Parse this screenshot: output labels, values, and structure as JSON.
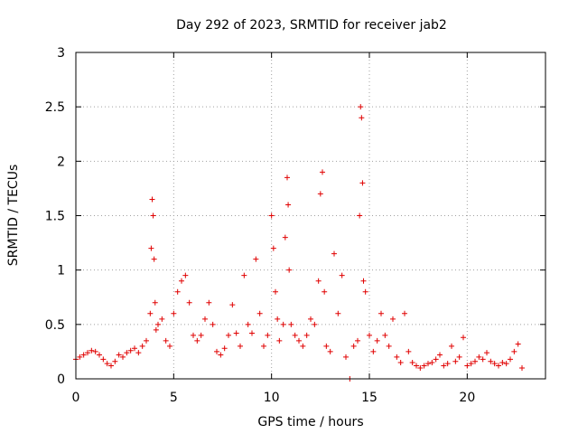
{
  "chart_data": {
    "type": "scatter",
    "title": "Day 292 of 2023, SRMTID for receiver jab2",
    "xlabel": "GPS time / hours",
    "ylabel": "SRMTID / TECUs",
    "xlim": [
      0,
      24
    ],
    "ylim": [
      0,
      3
    ],
    "xticks": [
      0,
      5,
      10,
      15,
      20
    ],
    "xtick_labels": [
      "0",
      "5",
      "10",
      "15",
      "20"
    ],
    "yticks": [
      0,
      0.5,
      1,
      1.5,
      2,
      2.5,
      3
    ],
    "ytick_labels": [
      "0",
      "0.5",
      "1",
      "1.5",
      "2",
      "2.5",
      "3"
    ],
    "grid": true,
    "marker": "+",
    "series": [
      {
        "name": "jab2",
        "color": "#e00000",
        "x": [
          0.0,
          0.2,
          0.4,
          0.6,
          0.8,
          1.0,
          1.2,
          1.4,
          1.6,
          1.8,
          2.0,
          2.2,
          2.4,
          2.6,
          2.8,
          3.0,
          3.2,
          3.4,
          3.6,
          3.8,
          3.85,
          3.9,
          3.95,
          4.0,
          4.05,
          4.1,
          4.2,
          4.4,
          4.6,
          4.8,
          5.0,
          5.2,
          5.4,
          5.6,
          5.8,
          6.0,
          6.2,
          6.4,
          6.6,
          6.8,
          7.0,
          7.2,
          7.4,
          7.6,
          7.8,
          8.0,
          8.2,
          8.4,
          8.6,
          8.8,
          9.0,
          9.2,
          9.4,
          9.6,
          9.8,
          10.0,
          10.1,
          10.2,
          10.3,
          10.4,
          10.6,
          10.7,
          10.8,
          10.85,
          10.9,
          11.0,
          11.2,
          11.4,
          11.6,
          11.8,
          12.0,
          12.2,
          12.4,
          12.5,
          12.6,
          12.7,
          12.8,
          13.0,
          13.2,
          13.4,
          13.6,
          13.8,
          14.0,
          14.2,
          14.4,
          14.5,
          14.55,
          14.6,
          14.65,
          14.7,
          14.8,
          15.0,
          15.2,
          15.4,
          15.6,
          15.8,
          16.0,
          16.2,
          16.4,
          16.6,
          16.8,
          17.0,
          17.2,
          17.4,
          17.6,
          17.8,
          18.0,
          18.2,
          18.4,
          18.6,
          18.8,
          19.0,
          19.2,
          19.4,
          19.6,
          19.8,
          20.0,
          20.2,
          20.4,
          20.6,
          20.8,
          21.0,
          21.2,
          21.4,
          21.6,
          21.8,
          22.0,
          22.2,
          22.4,
          22.6,
          22.8
        ],
        "y": [
          0.18,
          0.2,
          0.22,
          0.24,
          0.26,
          0.25,
          0.22,
          0.18,
          0.14,
          0.12,
          0.16,
          0.22,
          0.2,
          0.24,
          0.26,
          0.28,
          0.24,
          0.3,
          0.35,
          0.6,
          1.2,
          1.65,
          1.5,
          1.1,
          0.7,
          0.45,
          0.5,
          0.55,
          0.35,
          0.3,
          0.6,
          0.8,
          0.9,
          0.95,
          0.7,
          0.4,
          0.35,
          0.4,
          0.55,
          0.7,
          0.5,
          0.25,
          0.22,
          0.28,
          0.4,
          0.68,
          0.42,
          0.3,
          0.95,
          0.5,
          0.42,
          1.1,
          0.6,
          0.3,
          0.4,
          1.5,
          1.2,
          0.8,
          0.55,
          0.35,
          0.5,
          1.3,
          1.85,
          1.6,
          1.0,
          0.5,
          0.4,
          0.35,
          0.3,
          0.4,
          0.55,
          0.5,
          0.9,
          1.7,
          1.9,
          0.8,
          0.3,
          0.25,
          1.15,
          0.6,
          0.95,
          0.2,
          0.0,
          0.3,
          0.35,
          1.5,
          2.5,
          2.4,
          1.8,
          0.9,
          0.8,
          0.4,
          0.25,
          0.35,
          0.6,
          0.4,
          0.3,
          0.55,
          0.2,
          0.15,
          0.6,
          0.25,
          0.15,
          0.12,
          0.1,
          0.12,
          0.14,
          0.15,
          0.18,
          0.22,
          0.12,
          0.14,
          0.3,
          0.16,
          0.2,
          0.38,
          0.12,
          0.14,
          0.16,
          0.2,
          0.18,
          0.24,
          0.16,
          0.14,
          0.12,
          0.15,
          0.14,
          0.18,
          0.25,
          0.32,
          0.1
        ]
      }
    ]
  }
}
